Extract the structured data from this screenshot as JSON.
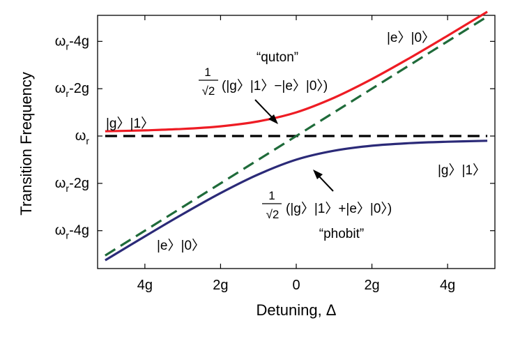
{
  "chart_data": {
    "type": "line",
    "xlabel": "Detuning, Δ",
    "ylabel": "Transition Frequency",
    "xlim": [
      -5.25,
      5.25
    ],
    "ylim": [
      -5.6,
      5.1
    ],
    "x_ticks": [
      {
        "value": -4,
        "label": "4g"
      },
      {
        "value": -2,
        "label": "2g"
      },
      {
        "value": 0,
        "label": "0"
      },
      {
        "value": 2,
        "label": "2g"
      },
      {
        "value": 4,
        "label": "4g"
      }
    ],
    "y_ticks": [
      {
        "value": 4,
        "base": "ω",
        "sub": "r",
        "suffix": "-4g"
      },
      {
        "value": 2,
        "base": "ω",
        "sub": "r",
        "suffix": "-2g"
      },
      {
        "value": 0,
        "base": "ω",
        "sub": "r",
        "suffix": ""
      },
      {
        "value": -2,
        "base": "ω",
        "sub": "r",
        "suffix": "-2g"
      },
      {
        "value": -4,
        "base": "ω",
        "sub": "r",
        "suffix": "-4g"
      }
    ],
    "series": [
      {
        "kind": "upper",
        "color": "#ee1c24",
        "style": "solid",
        "x": [
          -5.05,
          -4,
          -3,
          -2,
          -1,
          0,
          1,
          2,
          3,
          4,
          5.05
        ],
        "y": [
          0.2,
          0.24,
          0.3,
          0.41,
          0.62,
          1.0,
          1.62,
          2.41,
          3.3,
          4.24,
          5.25
        ]
      },
      {
        "kind": "lower",
        "color": "#2b2a78",
        "style": "solid",
        "x": [
          -5.05,
          -4,
          -3,
          -2,
          -1,
          0,
          1,
          2,
          3,
          4,
          5.05
        ],
        "y": [
          -5.25,
          -4.24,
          -3.3,
          -2.41,
          -1.62,
          -1.0,
          -0.62,
          -0.41,
          -0.3,
          -0.24,
          -0.2
        ]
      },
      {
        "kind": "bare-cavity",
        "color": "#000000",
        "style": "dashed",
        "x": [
          -5.05,
          5.05
        ],
        "y": [
          0,
          0
        ]
      },
      {
        "kind": "bare-qubit",
        "color": "#1f6b3a",
        "style": "dashed",
        "x": [
          -5.05,
          5.05
        ],
        "y": [
          -5.05,
          5.05
        ]
      }
    ],
    "annotations": {
      "top_right": "|e〉|0〉",
      "top_left": "|g〉|1〉",
      "bottom_right": "|g〉|1〉",
      "bottom_left": "|e〉|0〉",
      "quton_name": "“quton”",
      "quton_frac_num": "1",
      "quton_frac_den": "√2",
      "quton_state": "(|g〉|1〉−|e〉|0〉)",
      "phobit_name": "“phobit”",
      "phobit_frac_num": "1",
      "phobit_frac_den": "√2",
      "phobit_state": "(|g〉|1〉+|e〉|0〉)"
    }
  }
}
